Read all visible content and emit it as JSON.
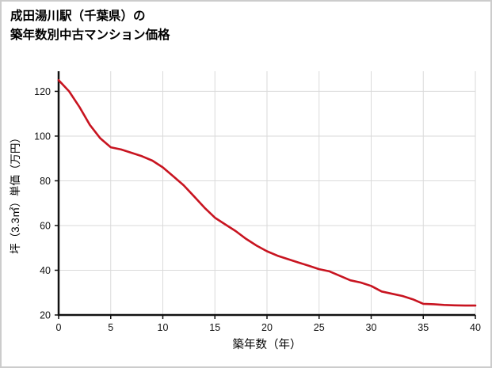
{
  "page": {
    "title_line1": "成田湯川駅（千葉県）の",
    "title_line2": "築年数別中古マンション価格"
  },
  "chart_data": {
    "type": "line",
    "title": "成田湯川駅（千葉県）の築年数別中古マンション価格",
    "xlabel": "築年数（年）",
    "ylabel": "坪（3.3㎡）単価（万円）",
    "x": [
      0,
      1,
      2,
      3,
      4,
      5,
      6,
      7,
      8,
      9,
      10,
      11,
      12,
      13,
      14,
      15,
      16,
      17,
      18,
      19,
      20,
      21,
      22,
      23,
      24,
      25,
      26,
      27,
      28,
      29,
      30,
      31,
      32,
      33,
      34,
      35,
      36,
      37,
      38,
      39,
      40
    ],
    "y": [
      125,
      120,
      113,
      105,
      99,
      95,
      94,
      92.5,
      91,
      89,
      86,
      82,
      78,
      73,
      68,
      63.5,
      60.5,
      57.5,
      54,
      51,
      48.5,
      46.5,
      45,
      43.5,
      42,
      40.5,
      39.5,
      37.5,
      35.5,
      34.5,
      33,
      30.5,
      29.5,
      28.5,
      27,
      25,
      24.8,
      24.5,
      24.3,
      24.2,
      24.2
    ],
    "xlim": [
      0,
      40
    ],
    "ylim": [
      20,
      129
    ],
    "xticks": [
      0,
      5,
      10,
      15,
      20,
      25,
      30,
      35,
      40
    ],
    "yticks": [
      20,
      40,
      60,
      80,
      100,
      120
    ],
    "grid": true,
    "legend": "none",
    "line_color": "#c81420",
    "grid_color": "#dadada",
    "axis_color": "#111111",
    "tick_label_color": "#111111"
  }
}
